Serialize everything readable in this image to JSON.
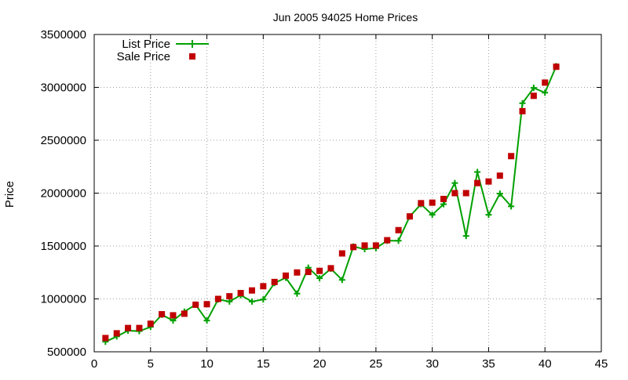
{
  "chart_data": {
    "type": "line",
    "title": "Jun 2005 94025 Home Prices",
    "xlabel": "",
    "ylabel": "Price",
    "xlim": [
      0,
      45
    ],
    "ylim": [
      500000,
      3500000
    ],
    "x_ticks": [
      "0",
      "5",
      "10",
      "15",
      "20",
      "25",
      "30",
      "35",
      "40",
      "45"
    ],
    "y_ticks": [
      "500000",
      "1000000",
      "1500000",
      "2000000",
      "2500000",
      "3000000",
      "3500000"
    ],
    "grid": true,
    "legend_position": "top-left",
    "series": [
      {
        "name": "List Price",
        "style": "line-plus",
        "color": "#00a000",
        "x": [
          1,
          2,
          3,
          4,
          5,
          6,
          7,
          8,
          9,
          10,
          11,
          12,
          13,
          14,
          15,
          16,
          17,
          18,
          19,
          20,
          21,
          22,
          23,
          24,
          25,
          26,
          27,
          28,
          29,
          30,
          31,
          32,
          33,
          34,
          35,
          36,
          37,
          38,
          39,
          40,
          41
        ],
        "values": [
          595000,
          645000,
          700000,
          695000,
          735000,
          850000,
          795000,
          880000,
          945000,
          795000,
          995000,
          975000,
          1035000,
          975000,
          995000,
          1150000,
          1200000,
          1050000,
          1295000,
          1195000,
          1285000,
          1180000,
          1495000,
          1470000,
          1480000,
          1550000,
          1550000,
          1780000,
          1895000,
          1795000,
          1895000,
          2095000,
          1595000,
          2200000,
          1795000,
          1995000,
          1875000,
          2850000,
          2995000,
          2950000,
          3200000
        ]
      },
      {
        "name": "Sale Price",
        "style": "square",
        "color": "#c00000",
        "x": [
          1,
          2,
          3,
          4,
          5,
          6,
          7,
          8,
          9,
          10,
          11,
          12,
          13,
          14,
          15,
          16,
          17,
          18,
          19,
          20,
          21,
          22,
          23,
          24,
          25,
          26,
          27,
          28,
          29,
          30,
          31,
          32,
          33,
          34,
          35,
          36,
          37,
          38,
          39,
          40,
          41
        ],
        "values": [
          630000,
          675000,
          725000,
          725000,
          765000,
          855000,
          845000,
          860000,
          945000,
          950000,
          1000000,
          1025000,
          1055000,
          1080000,
          1120000,
          1160000,
          1220000,
          1250000,
          1255000,
          1265000,
          1290000,
          1430000,
          1490000,
          1505000,
          1505000,
          1555000,
          1650000,
          1780000,
          1905000,
          1910000,
          1945000,
          2000000,
          2000000,
          2095000,
          2110000,
          2165000,
          2350000,
          2775000,
          2920000,
          3045000,
          3195000
        ]
      }
    ]
  }
}
